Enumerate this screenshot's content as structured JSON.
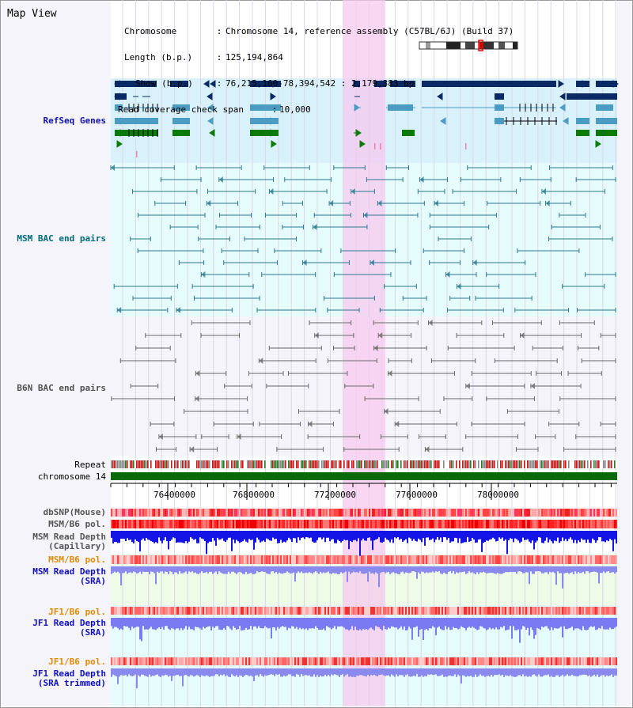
{
  "app": {
    "title": "Map View"
  },
  "info": {
    "rows": [
      {
        "key": "Chromosome",
        "value": "Chromosome 14, reference assembly (C57BL/6J) (Build 37)"
      },
      {
        "key": "Length (b.p.)",
        "value": "125,194,864"
      },
      {
        "key": "Show (b.p.)",
        "value": "76,215,160-78,394,542 : 2,179,383 bp"
      },
      {
        "key": "Read coverage check span",
        "value": "10,000"
      }
    ]
  },
  "tracks": {
    "refseq": {
      "label": "RefSeq Genes",
      "color": "#1010b0"
    },
    "msm_bac": {
      "label": "MSM BAC end pairs",
      "color": "#006a7a"
    },
    "b6n_bac": {
      "label": "B6N BAC end pairs",
      "color": "#505050"
    },
    "repeat": {
      "label": "Repeat"
    },
    "chromosome": {
      "label": "chromosome 14"
    },
    "dbsnp": {
      "label": "dbSNP(Mouse)"
    },
    "msm_b6_pol": {
      "label": "MSM/B6 pol."
    },
    "msm_read_depth_cap": {
      "label": "MSM Read Depth\n(Capillary)"
    },
    "msm_b6_pol_sra": {
      "label": "MSM/B6 pol.",
      "color": "#e08a00"
    },
    "msm_read_depth_sra": {
      "label": "MSM Read Depth\n(SRA)",
      "color": "#1010c0"
    },
    "jf1_b6_pol": {
      "label": "JF1/B6 pol.",
      "color": "#e08a00"
    },
    "jf1_read_depth_sra": {
      "label": "JF1 Read Depth\n(SRA)",
      "color": "#1010c0"
    },
    "jf1_b6_pol_trim": {
      "label": "JF1/B6 pol.",
      "color": "#e08a00"
    },
    "jf1_read_depth_trim": {
      "label": "JF1 Read Depth\n(SRA trimmed)",
      "color": "#1010c0"
    }
  },
  "ruler": {
    "ticks": [
      "76400000",
      "76800000",
      "77200000",
      "77600000",
      "78000000"
    ]
  },
  "colors": {
    "refseq_bg": "#d9f1fb",
    "msm_bg": "#e6fbfb",
    "b6n_bg": "#f4f4fa",
    "highlight": "#f7c8ee",
    "gene_navy": "#0a2a66",
    "gene_teal": "#4a9cc2",
    "gene_green": "#0a7a0a",
    "chromosome": "#0a6a0a"
  }
}
